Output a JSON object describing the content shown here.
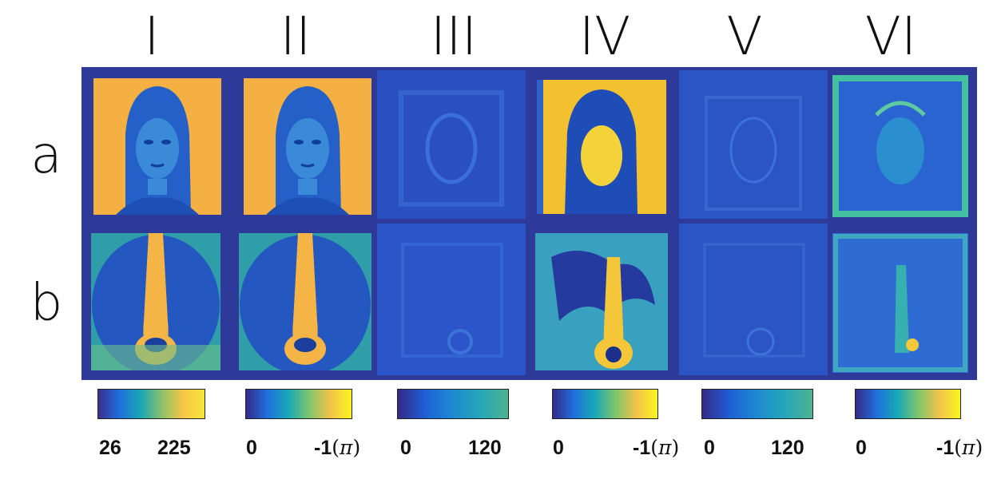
{
  "columns": [
    "I",
    "II",
    "III",
    "IV",
    "V",
    "VI"
  ],
  "rows": [
    "a",
    "b"
  ],
  "colorbars": [
    {
      "min": "26",
      "max": "225",
      "unit": "",
      "gradient": [
        "#3b2f8f",
        "#1f6fdc",
        "#1aa6b6",
        "#8cc26a",
        "#f6c744",
        "#f9e63a"
      ]
    },
    {
      "min": "0",
      "max": "-1",
      "unit": "π",
      "gradient": [
        "#352a87",
        "#1f6fdc",
        "#17a8b8",
        "#7fc56b",
        "#f3c34a",
        "#f9f520"
      ]
    },
    {
      "min": "0",
      "max": "120",
      "unit": "",
      "gradient": [
        "#352a87",
        "#1e5fd6",
        "#1d8ad0",
        "#25a6b8",
        "#4fb38f"
      ]
    },
    {
      "min": "0",
      "max": "-1",
      "unit": "π",
      "gradient": [
        "#352a87",
        "#1f6fdc",
        "#17a8b8",
        "#7fc56b",
        "#f3c34a",
        "#f9f520"
      ]
    },
    {
      "min": "0",
      "max": "120",
      "unit": "",
      "gradient": [
        "#352a87",
        "#1e5fd6",
        "#1d8ad0",
        "#25a6b8",
        "#4fb38f"
      ]
    },
    {
      "min": "0",
      "max": "-1",
      "unit": "π",
      "gradient": [
        "#352a87",
        "#1f6fdc",
        "#17a8b8",
        "#7fc56b",
        "#f3c34a",
        "#f9f520"
      ]
    }
  ],
  "colors": {
    "background": "#2d3a9a",
    "face_bg": "#f5b043",
    "dog_bg": "#2f9ea8"
  }
}
